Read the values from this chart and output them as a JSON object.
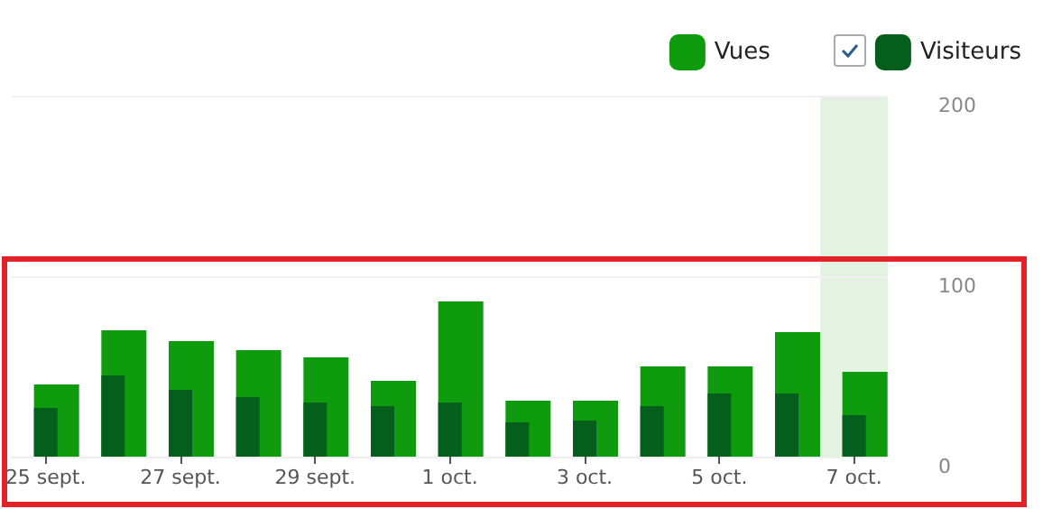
{
  "chart_data": {
    "type": "bar",
    "categories": [
      "25 sept.",
      null,
      "27 sept.",
      null,
      "29 sept.",
      null,
      "1 oct.",
      null,
      "3 oct.",
      null,
      "5 oct.",
      null,
      "7 oct."
    ],
    "series": [
      {
        "name": "Vues",
        "color": "#0e9b0e",
        "values": [
          40,
          70,
          64,
          59,
          55,
          42,
          86,
          31,
          31,
          50,
          50,
          69,
          47
        ]
      },
      {
        "name": "Visiteurs",
        "color": "#055f1c",
        "values": [
          27,
          45,
          37,
          33,
          30,
          28,
          30,
          19,
          20,
          28,
          35,
          35,
          23
        ]
      }
    ],
    "ylim": [
      0,
      200
    ],
    "yticks": [
      0,
      100,
      200
    ],
    "grid": "y",
    "legend": "top right",
    "bands": [
      {
        "axis": "x",
        "from": "7 oct.",
        "to": "7 oct.",
        "color": "#e3f2e1"
      }
    ]
  }
}
